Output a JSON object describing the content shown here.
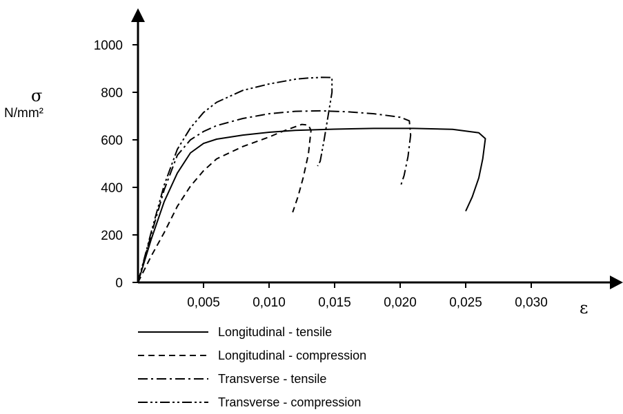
{
  "chart_data": {
    "type": "line",
    "title": "",
    "xlabel": "ε",
    "ylabel": "σ",
    "yunit": "N/mm²",
    "xlim": [
      0,
      0.035
    ],
    "ylim": [
      0,
      1000
    ],
    "x_ticks": [
      {
        "value": 0.005,
        "label": "0,005"
      },
      {
        "value": 0.01,
        "label": "0,010"
      },
      {
        "value": 0.015,
        "label": "0,015"
      },
      {
        "value": 0.02,
        "label": "0,020"
      },
      {
        "value": 0.025,
        "label": "0,025"
      },
      {
        "value": 0.03,
        "label": "0,030"
      }
    ],
    "y_ticks": [
      {
        "value": 0,
        "label": "0"
      },
      {
        "value": 200,
        "label": "200"
      },
      {
        "value": 400,
        "label": "400"
      },
      {
        "value": 600,
        "label": "600"
      },
      {
        "value": 800,
        "label": "800"
      },
      {
        "value": 1000,
        "label": "1000"
      }
    ],
    "grid": false,
    "legend_position": "bottom",
    "series": [
      {
        "name": "Longitudinal - tensile",
        "dash": "solid",
        "color": "#000000",
        "points": [
          [
            0,
            0
          ],
          [
            0.001,
            180
          ],
          [
            0.002,
            340
          ],
          [
            0.003,
            460
          ],
          [
            0.004,
            545
          ],
          [
            0.005,
            585
          ],
          [
            0.006,
            603
          ],
          [
            0.008,
            620
          ],
          [
            0.01,
            632
          ],
          [
            0.012,
            640
          ],
          [
            0.015,
            645
          ],
          [
            0.018,
            648
          ],
          [
            0.021,
            648
          ],
          [
            0.024,
            644
          ],
          [
            0.026,
            630
          ],
          [
            0.0265,
            605
          ],
          [
            0.0263,
            520
          ],
          [
            0.026,
            440
          ],
          [
            0.0255,
            360
          ],
          [
            0.025,
            300
          ]
        ]
      },
      {
        "name": "Longitudinal - compression",
        "dash": "dashed",
        "color": "#000000",
        "points": [
          [
            0,
            0
          ],
          [
            0.001,
            110
          ],
          [
            0.002,
            210
          ],
          [
            0.003,
            320
          ],
          [
            0.004,
            405
          ],
          [
            0.005,
            470
          ],
          [
            0.006,
            520
          ],
          [
            0.008,
            572
          ],
          [
            0.01,
            612
          ],
          [
            0.011,
            635
          ],
          [
            0.012,
            655
          ],
          [
            0.0125,
            665
          ],
          [
            0.013,
            662
          ],
          [
            0.0132,
            640
          ],
          [
            0.013,
            540
          ],
          [
            0.0126,
            440
          ],
          [
            0.0122,
            360
          ],
          [
            0.0118,
            295
          ]
        ]
      },
      {
        "name": "Transverse - tensile",
        "dash": "dashdot",
        "color": "#000000",
        "points": [
          [
            0,
            0
          ],
          [
            0.001,
            200
          ],
          [
            0.002,
            390
          ],
          [
            0.003,
            535
          ],
          [
            0.004,
            600
          ],
          [
            0.005,
            635
          ],
          [
            0.006,
            660
          ],
          [
            0.008,
            690
          ],
          [
            0.01,
            710
          ],
          [
            0.012,
            720
          ],
          [
            0.014,
            722
          ],
          [
            0.016,
            718
          ],
          [
            0.018,
            710
          ],
          [
            0.02,
            695
          ],
          [
            0.0207,
            680
          ],
          [
            0.0208,
            620
          ],
          [
            0.0206,
            530
          ],
          [
            0.0203,
            450
          ],
          [
            0.02,
            400
          ]
        ]
      },
      {
        "name": "Transverse - compression",
        "dash": "dashdotdot",
        "color": "#000000",
        "points": [
          [
            0,
            0
          ],
          [
            0.001,
            210
          ],
          [
            0.002,
            410
          ],
          [
            0.003,
            560
          ],
          [
            0.004,
            650
          ],
          [
            0.005,
            715
          ],
          [
            0.006,
            758
          ],
          [
            0.008,
            808
          ],
          [
            0.01,
            835
          ],
          [
            0.012,
            855
          ],
          [
            0.013,
            860
          ],
          [
            0.014,
            863
          ],
          [
            0.0148,
            862
          ],
          [
            0.0148,
            800
          ],
          [
            0.0145,
            700
          ],
          [
            0.0142,
            600
          ],
          [
            0.0139,
            510
          ],
          [
            0.0137,
            490
          ]
        ]
      }
    ]
  }
}
